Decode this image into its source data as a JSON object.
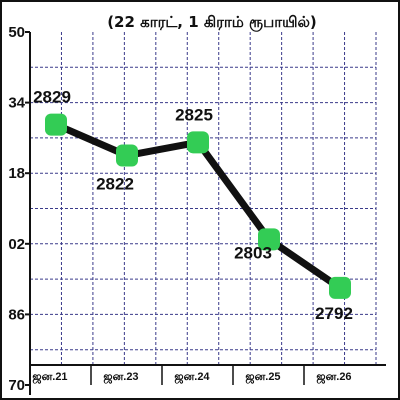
{
  "chart_data": {
    "type": "line",
    "title": "(22 காரட், 1 கிராம் ரூபாயில்)",
    "xlabel": "",
    "ylabel": "",
    "categories": [
      "ஜன.21",
      "ஜன.23",
      "ஜன.24",
      "ஜன.25",
      "ஜன.26"
    ],
    "series": [
      {
        "values": [
          2829,
          2822,
          2825,
          2803,
          2792
        ]
      }
    ],
    "y_ticks": [
      "50",
      "34",
      "18",
      "02",
      "86",
      "70"
    ],
    "ylim": [
      2770,
      2850
    ],
    "grid": true,
    "legend": "none",
    "colors": {
      "line": "#111111",
      "marker": "#33cc55",
      "grid": "#3a3a8a",
      "axis": "#111111",
      "border": "#111111"
    }
  }
}
